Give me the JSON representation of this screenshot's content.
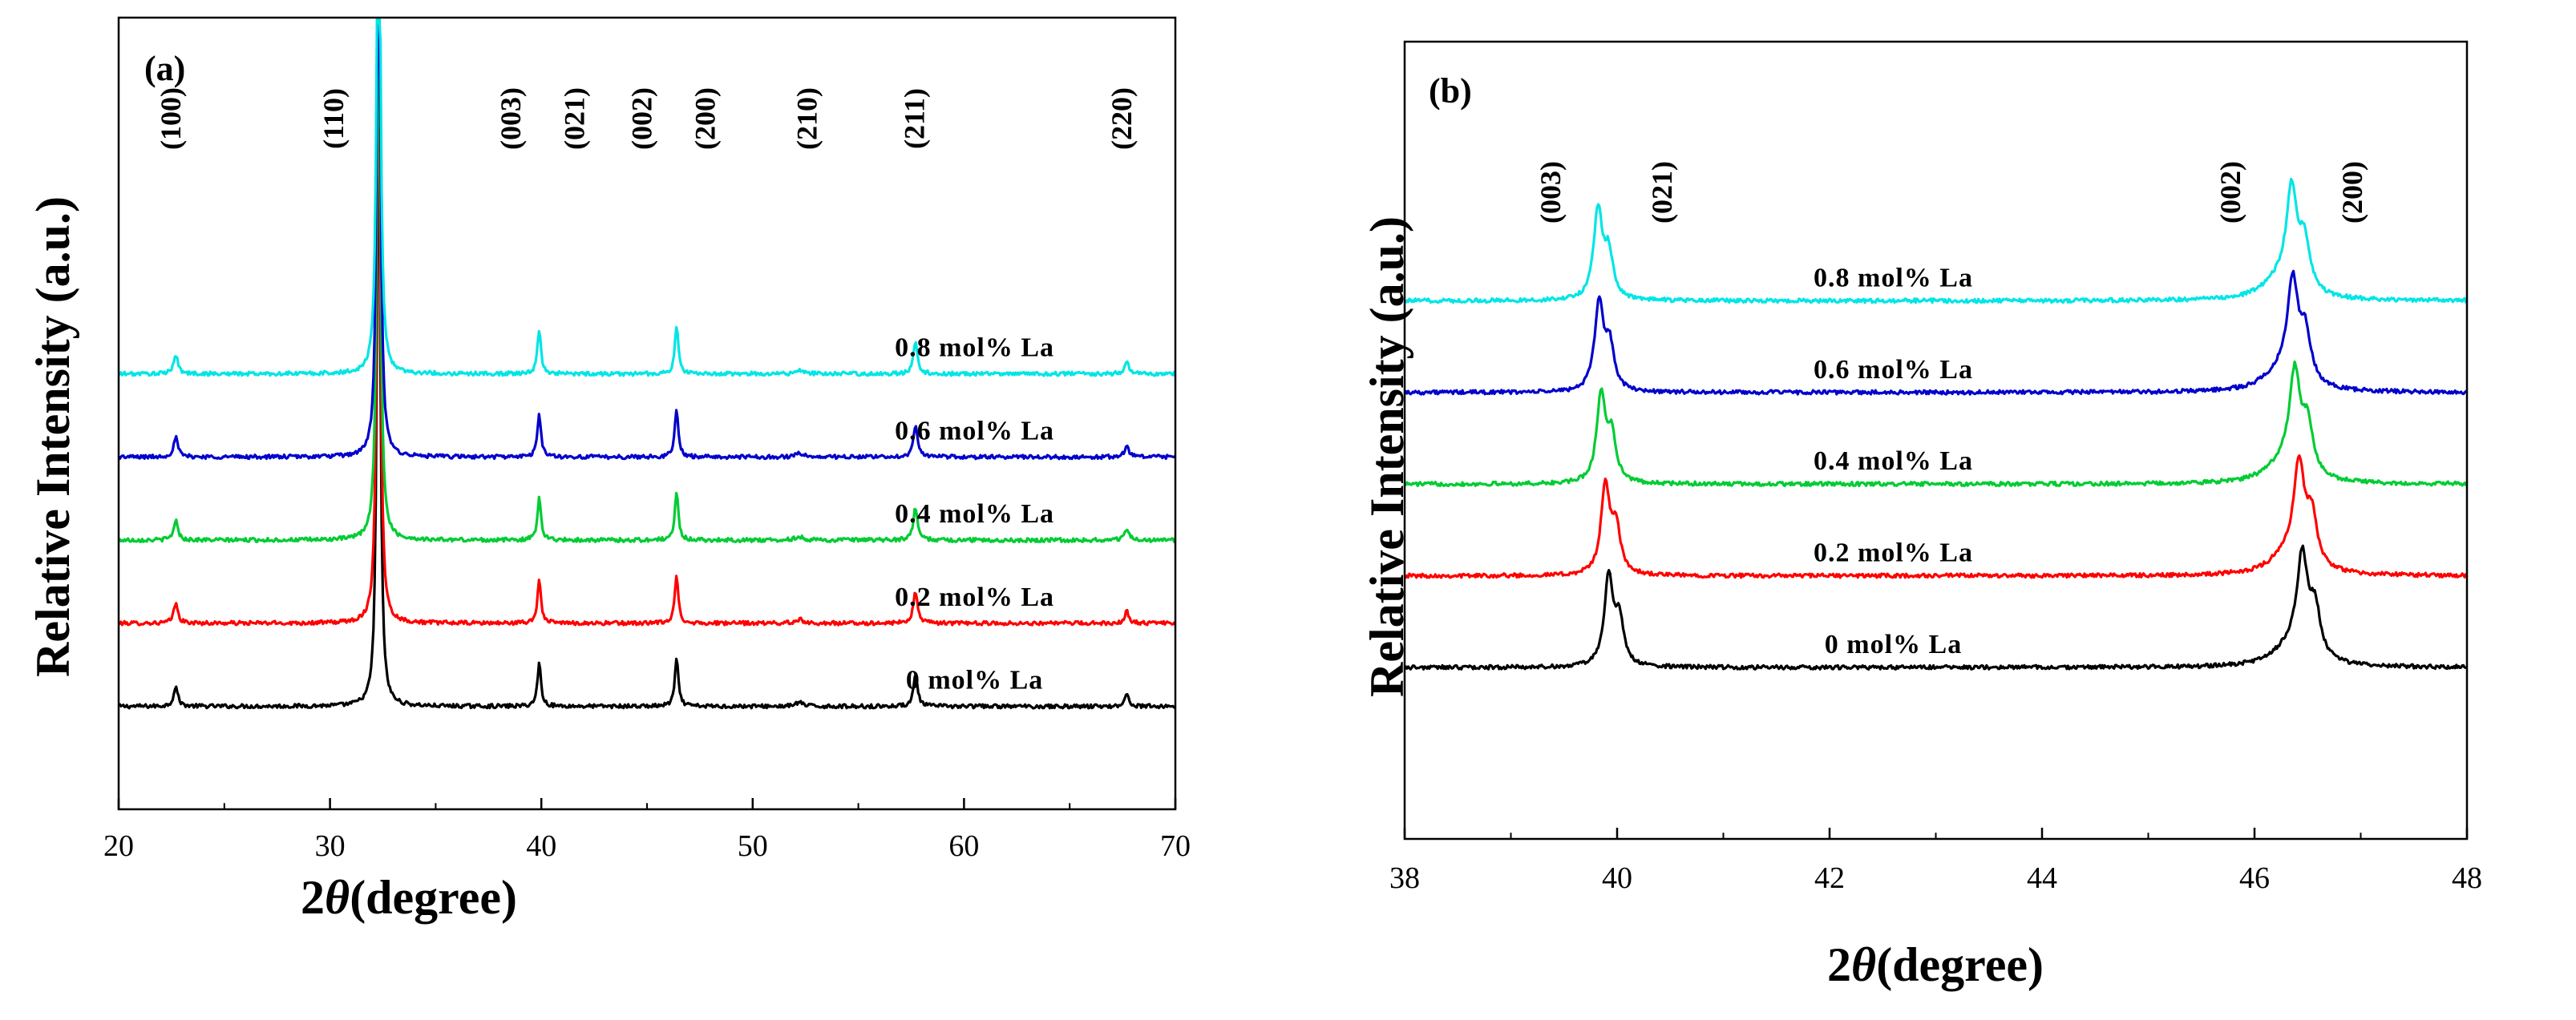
{
  "chart_data": [
    {
      "panel": "(a)",
      "type": "line",
      "xlabel_prefix": "2",
      "xlabel_symbol": "θ",
      "xlabel_suffix": "(degree)",
      "ylabel": "Relative Intensity (a.u.)",
      "xlim": [
        20,
        70
      ],
      "ylim": [
        0,
        10
      ],
      "xticks": [
        20,
        30,
        40,
        50,
        60,
        70
      ],
      "grid": false,
      "peak_labels": [
        {
          "text": "(100)",
          "x": 22.6
        },
        {
          "text": "(110)",
          "x": 30.3
        },
        {
          "text": "(003)",
          "x": 38.7
        },
        {
          "text": "(021)",
          "x": 41.7
        },
        {
          "text": "(002)",
          "x": 44.9
        },
        {
          "text": "(200)",
          "x": 47.9
        },
        {
          "text": "(210)",
          "x": 52.7
        },
        {
          "text": "(211)",
          "x": 57.8
        },
        {
          "text": "(220)",
          "x": 67.6
        }
      ],
      "peaks": [
        {
          "x": 22.7,
          "h": 0.25,
          "w": 0.12
        },
        {
          "x": 32.3,
          "h": 8.3,
          "w": 0.09
        },
        {
          "x": 39.9,
          "h": 0.55,
          "w": 0.1
        },
        {
          "x": 46.4,
          "h": 0.6,
          "w": 0.1
        },
        {
          "x": 52.2,
          "h": 0.05,
          "w": 0.2
        },
        {
          "x": 57.7,
          "h": 0.4,
          "w": 0.12
        },
        {
          "x": 67.7,
          "h": 0.15,
          "w": 0.12
        }
      ],
      "series": [
        {
          "name": "0 mol% La",
          "color": "#000000",
          "baseline": 1.3,
          "label_x": 60.5
        },
        {
          "name": "0.2 mol% La",
          "color": "#ff0000",
          "baseline": 2.35,
          "label_x": 60.5
        },
        {
          "name": "0.4 mol% La",
          "color": "#00cc33",
          "baseline": 3.4,
          "label_x": 60.5
        },
        {
          "name": "0.6 mol% La",
          "color": "#0000cc",
          "baseline": 4.45,
          "label_x": 60.5
        },
        {
          "name": "0.8 mol% La",
          "color": "#00e5e5",
          "baseline": 5.5,
          "label_x": 60.5
        }
      ]
    },
    {
      "panel": "(b)",
      "type": "line",
      "xlabel_prefix": "2",
      "xlabel_symbol": "θ",
      "xlabel_suffix": "(degree)",
      "ylabel": "Relative Intensity (a.u.)",
      "xlim": [
        38,
        48
      ],
      "ylim": [
        0,
        10
      ],
      "xticks": [
        38,
        40,
        42,
        44,
        46,
        48
      ],
      "grid": false,
      "peak_labels": [
        {
          "text": "(003)",
          "x": 39.4
        },
        {
          "text": "(021)",
          "x": 40.45
        },
        {
          "text": "(002)",
          "x": 45.8
        },
        {
          "text": "(200)",
          "x": 46.95
        }
      ],
      "peaks": [
        {
          "x": 39.87,
          "h": 1.1,
          "w": 0.05
        },
        {
          "x": 39.97,
          "h": 0.55,
          "w": 0.05
        },
        {
          "x": 46.4,
          "h": 1.2,
          "w": 0.06
        },
        {
          "x": 46.52,
          "h": 0.6,
          "w": 0.06
        },
        {
          "x": 46.3,
          "h": 0.25,
          "w": 0.2
        }
      ],
      "series": [
        {
          "name": "0 mol% La",
          "color": "#000000",
          "baseline": 2.15,
          "label_x": 42.6,
          "shift": 0.05
        },
        {
          "name": "0.2 mol% La",
          "color": "#ff0000",
          "baseline": 3.3,
          "label_x": 42.6,
          "shift": 0.02
        },
        {
          "name": "0.4 mol% La",
          "color": "#00cc33",
          "baseline": 4.45,
          "label_x": 42.6,
          "shift": -0.02
        },
        {
          "name": "0.6 mol% La",
          "color": "#0000cc",
          "baseline": 5.6,
          "label_x": 42.6,
          "shift": -0.04
        },
        {
          "name": "0.8 mol% La",
          "color": "#00e5e5",
          "baseline": 6.75,
          "label_x": 42.6,
          "shift": -0.05
        }
      ]
    }
  ]
}
